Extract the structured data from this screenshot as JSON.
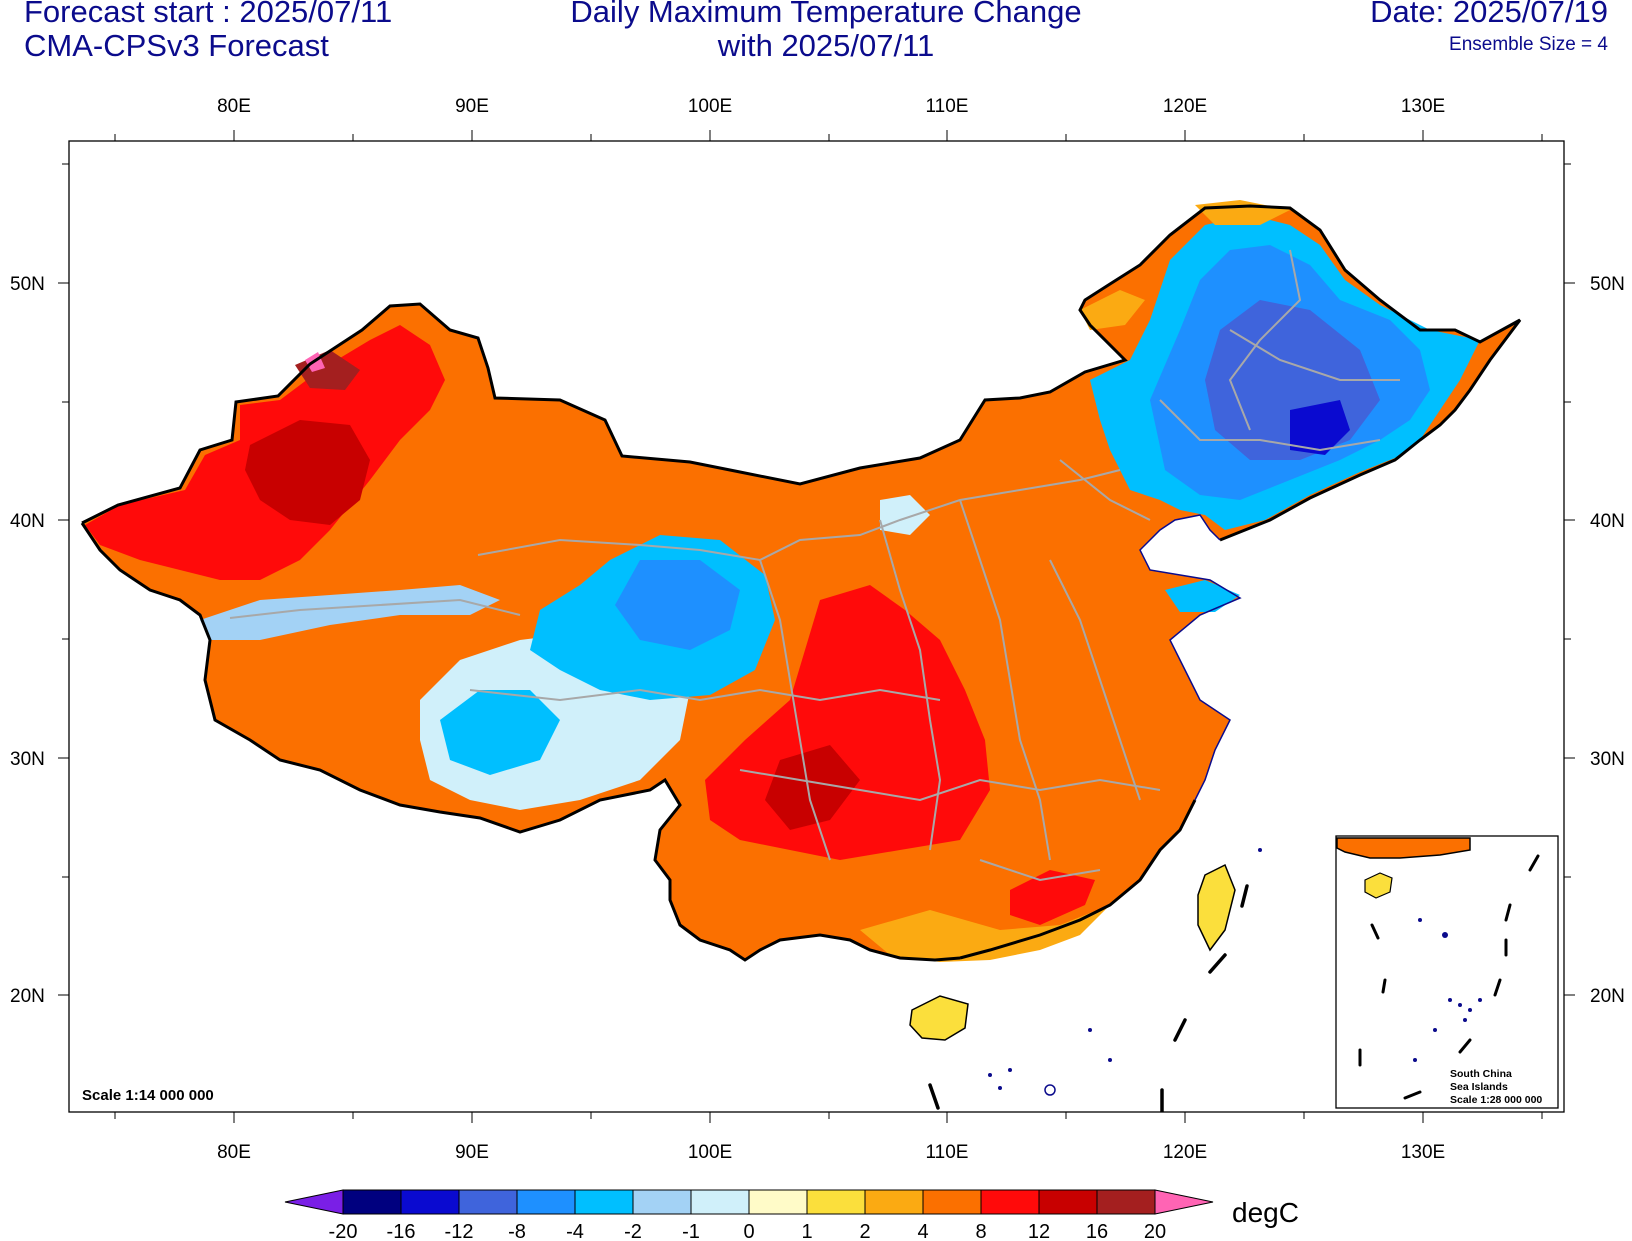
{
  "header": {
    "forecast_start": "Forecast start : 2025/07/11",
    "model": "CMA-CPSv3 Forecast",
    "title_line1": "Daily Maximum Temperature Change",
    "title_line2": "with 2025/07/11",
    "date": "Date: 2025/07/19",
    "ensemble": "Ensemble Size = 4"
  },
  "map": {
    "lon_ticks": [
      "80E",
      "90E",
      "100E",
      "110E",
      "120E",
      "130E"
    ],
    "lat_ticks": [
      "50N",
      "40N",
      "30N",
      "20N"
    ],
    "scale_main": "Scale 1:14 000 000",
    "inset_label": [
      "South China",
      "Sea Islands",
      "Scale 1:28 000 000"
    ]
  },
  "colorbar": {
    "labels": [
      "-20",
      "-16",
      "-12",
      "-8",
      "-4",
      "-2",
      "-1",
      "0",
      "1",
      "2",
      "4",
      "8",
      "12",
      "16",
      "20"
    ],
    "colors": [
      "#7a1fe6",
      "#00007f",
      "#0a0ad0",
      "#3f64dc",
      "#1e90ff",
      "#00bfff",
      "#a3d2f5",
      "#d0f0fa",
      "#fffbc8",
      "#fbdf3c",
      "#fbaa12",
      "#fb7000",
      "#ff0a0a",
      "#c80000",
      "#a41f1f",
      "#ff64b4"
    ],
    "unit": "degC"
  }
}
